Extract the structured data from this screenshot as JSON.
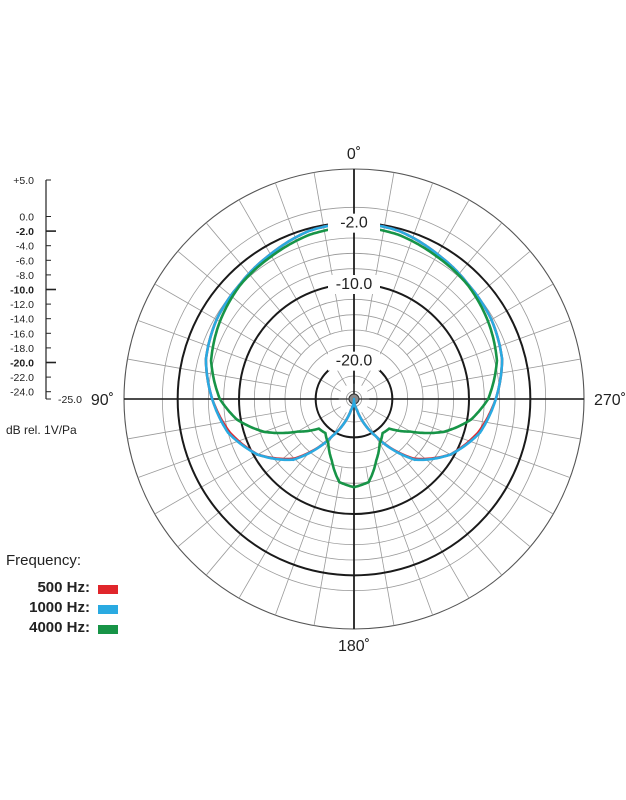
{
  "chart_data": {
    "type": "polar",
    "title": "",
    "angle_labels": [
      "0˚",
      "90˚",
      "180˚",
      "270˚"
    ],
    "ring_labels": [
      "-2.0",
      "-10.0",
      "-20.0"
    ],
    "radial_range_db": [
      -25,
      5
    ],
    "scale": {
      "ticks": [
        "+5.0",
        "0.0",
        "-2.0",
        "-4.0",
        "-6.0",
        "-8.0",
        "-10.0",
        "-12.0",
        "-14.0",
        "-16.0",
        "-18.0",
        "-20.0",
        "-22.0",
        "-24.0",
        "-25.0"
      ],
      "bold_ticks": [
        "-2.0",
        "-10.0",
        "-20.0"
      ],
      "unit": "dB rel. 1V/Pa"
    },
    "angle_step_deg": 10,
    "series": [
      {
        "name": "500 Hz",
        "color": "#e0262b",
        "angles_deg": [
          0,
          15,
          30,
          45,
          60,
          75,
          90,
          105,
          120,
          135,
          150,
          165,
          180
        ],
        "values_db": [
          -2,
          -2.3,
          -3.2,
          -3.9,
          -4.3,
          -5.0,
          -6.5,
          -8.2,
          -10.5,
          -14.0,
          -19.5,
          -23.5,
          -25
        ]
      },
      {
        "name": "1000 Hz",
        "color": "#2aaae1",
        "angles_deg": [
          0,
          15,
          30,
          45,
          60,
          75,
          90,
          105,
          120,
          135,
          150,
          165,
          180
        ],
        "values_db": [
          -2,
          -2.3,
          -3.2,
          -3.9,
          -4.3,
          -5.0,
          -6.5,
          -8.0,
          -10.5,
          -13.8,
          -19.5,
          -23.5,
          -25
        ]
      },
      {
        "name": "4000 Hz",
        "color": "#179447",
        "angles_deg": [
          0,
          15,
          30,
          45,
          60,
          75,
          90,
          100,
          110,
          120,
          130,
          140,
          150,
          160,
          170,
          180
        ],
        "values_db": [
          -2.5,
          -2.8,
          -3.5,
          -4.0,
          -4.8,
          -5.7,
          -7.5,
          -9.5,
          -12.5,
          -16.5,
          -19.0,
          -19.2,
          -18.3,
          -16.5,
          -14.0,
          -13.5
        ]
      }
    ]
  },
  "legend": {
    "title": "Frequency:",
    "items": [
      {
        "label": "500 Hz:",
        "color": "#e0262b"
      },
      {
        "label": "1000 Hz:",
        "color": "#2aaae1"
      },
      {
        "label": "4000 Hz:",
        "color": "#179447"
      }
    ]
  }
}
